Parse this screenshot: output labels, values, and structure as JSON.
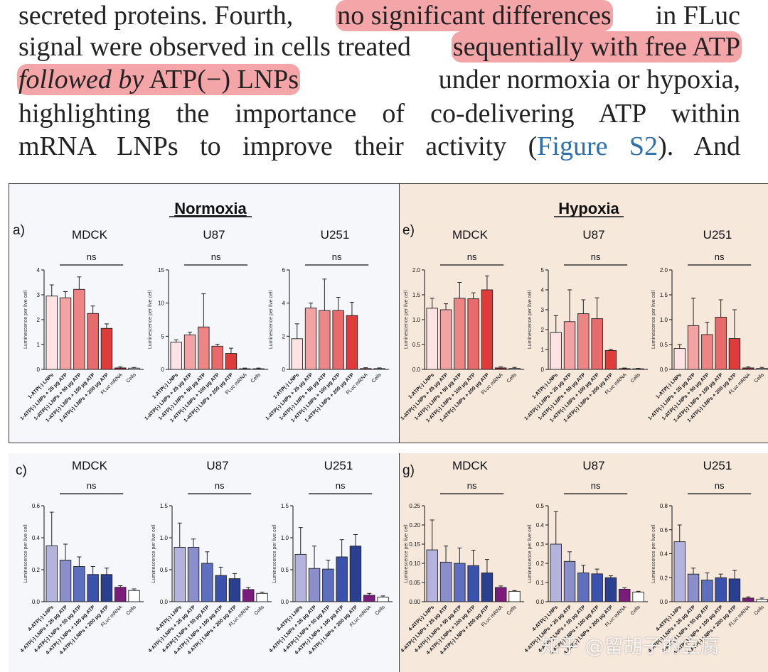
{
  "text": {
    "line1": {
      "a": "secreted proteins. Fourth,",
      "hl": "no significant differences",
      "b": "in FLuc"
    },
    "line2": {
      "a": "signal were observed in cells treated",
      "hl": "sequentially with free ATP"
    },
    "line3": {
      "hl_italic": "followed by",
      "hl": "ATP(−) LNPs",
      "b": "under normoxia or hypoxia,"
    },
    "line4": "highlighting the importance of co-delivering ATP within",
    "line5": {
      "a": "mRNA LNPs to improve their activity (",
      "link": "Figure S2",
      "b": "). And"
    }
  },
  "figure": {
    "normoxia_title": "Normoxia",
    "hypoxia_title": "Hypoxia",
    "colors": {
      "normoxia_bg": "#f5f7fa",
      "hypoxia_bg": "#f7e8dc",
      "reds": [
        "#fde3e3",
        "#f3a3a3",
        "#ee8585",
        "#e86a6a",
        "#df3b3b",
        "#c42828"
      ],
      "blues": [
        "#b3b3dd",
        "#8a8fcb",
        "#5d6fbf",
        "#3a52ad",
        "#2a3f8f",
        "#1e2e6e"
      ],
      "mrna_red": "#8e1f25",
      "mrna_blue": "#7b1c7c",
      "white": "#ffffff"
    },
    "watermark": "知乎 @留胡子的豆腐"
  },
  "chart_data": [
    {
      "panel": "a",
      "cell": "MDCK",
      "condition": "Normoxia",
      "type": "bar",
      "ylabel": "Luminescence per live cell",
      "ylim": [
        0,
        4
      ],
      "yticks": [
        0,
        1,
        2,
        3,
        4
      ],
      "sig": "ns",
      "categories": [
        "1-ATP(-) LNPs",
        "1-ATP(-) LNPs + 25 μg ATP",
        "1-ATP(-) LNPs + 50 μg ATP",
        "1-ATP(-) LNPs + 100 μg ATP",
        "1-ATP(-) LNPs + 200 μg ATP",
        "FLuc mRNA",
        "Cells"
      ],
      "values": [
        2.95,
        2.88,
        3.22,
        2.25,
        1.65,
        0.06,
        0.05
      ],
      "errors": [
        0.45,
        0.25,
        0.5,
        0.3,
        0.18,
        0.04,
        0.03
      ]
    },
    {
      "panel": "",
      "cell": "U87",
      "condition": "Normoxia",
      "type": "bar",
      "ylabel": "Luminescence per live cell",
      "ylim": [
        0,
        15
      ],
      "yticks": [
        0,
        5,
        10,
        15
      ],
      "sig": "ns",
      "categories": [
        "1-ATP(-) LNPs",
        "1-ATP(-) LNPs + 25 μg ATP",
        "1-ATP(-) LNPs + 50 μg ATP",
        "1-ATP(-) LNPs + 100 μg ATP",
        "1-ATP(-) LNPs + 200 μg ATP",
        "FLuc mRNA",
        "Cells"
      ],
      "values": [
        4.1,
        5.2,
        6.4,
        3.5,
        2.4,
        0.1,
        0.1
      ],
      "errors": [
        0.35,
        0.4,
        5.0,
        0.3,
        0.8,
        0.1,
        0.1
      ]
    },
    {
      "panel": "",
      "cell": "U251",
      "condition": "Normoxia",
      "type": "bar",
      "ylabel": "Luminescence per live cell",
      "ylim": [
        0,
        6
      ],
      "yticks": [
        0,
        2,
        4,
        6
      ],
      "sig": "ns",
      "categories": [
        "1-ATP(-) LNPs",
        "1-ATP(-) LNPs + 25 μg ATP",
        "1-ATP(-) LNPs + 50 μg ATP",
        "1-ATP(-) LNPs + 100 μg ATP",
        "1-ATP(-) LNPs + 200 μg ATP",
        "FLuc mRNA",
        "Cells"
      ],
      "values": [
        1.85,
        3.7,
        3.55,
        3.55,
        3.25,
        0.05,
        0.05
      ],
      "errors": [
        0.9,
        0.3,
        1.9,
        0.8,
        0.8,
        0.05,
        0.04
      ]
    },
    {
      "panel": "e",
      "cell": "MDCK",
      "condition": "Hypoxia",
      "type": "bar",
      "ylabel": "Luminescence per live cell",
      "ylim": [
        0,
        2.0
      ],
      "yticks": [
        "0.0",
        "0.5",
        "1.0",
        "1.5",
        "2.0"
      ],
      "sig": "ns",
      "categories": [
        "1-ATP(-) LNPs",
        "1-ATP(-) LNPs + 25 μg ATP",
        "1-ATP(-) LNPs + 50 μg ATP",
        "1-ATP(-) LNPs + 100 μg ATP",
        "1-ATP(-) LNPs + 200 μg ATP",
        "FLuc mRNA",
        "Cells"
      ],
      "values": [
        1.23,
        1.2,
        1.43,
        1.42,
        1.6,
        0.03,
        0.02
      ],
      "errors": [
        0.2,
        0.12,
        0.32,
        0.12,
        0.28,
        0.02,
        0.02
      ]
    },
    {
      "panel": "",
      "cell": "U87",
      "condition": "Hypoxia",
      "type": "bar",
      "ylabel": "Luminescence per live cell",
      "ylim": [
        0,
        5
      ],
      "yticks": [
        0,
        1,
        2,
        3,
        4,
        5
      ],
      "sig": "ns",
      "categories": [
        "1-ATP(-) LNPs",
        "1-ATP(-) LNPs + 25 μg ATP",
        "1-ATP(-) LNPs + 50 μg ATP",
        "1-ATP(-) LNPs + 100 μg ATP",
        "1-ATP(-) LNPs + 200 μg ATP",
        "FLuc mRNA",
        "Cells"
      ],
      "values": [
        1.85,
        2.4,
        2.8,
        2.55,
        0.95,
        0.04,
        0.03
      ],
      "errors": [
        0.85,
        1.6,
        0.7,
        1.05,
        0.05,
        0.03,
        0.02
      ]
    },
    {
      "panel": "",
      "cell": "U251",
      "condition": "Hypoxia",
      "type": "bar",
      "ylabel": "Luminescence per live cell",
      "ylim": [
        0,
        2.0
      ],
      "yticks": [
        "0.0",
        "0.5",
        "1.0",
        "1.5",
        "2.0"
      ],
      "sig": "ns",
      "categories": [
        "1-ATP(-) LNPs",
        "1-ATP(-) LNPs + 25 μg ATP",
        "1-ATP(-) LNPs + 50 μg ATP",
        "1-ATP(-) LNPs + 100 μg ATP",
        "1-ATP(-) LNPs + 200 μg ATP",
        "FLuc mRNA",
        "Cells"
      ],
      "values": [
        0.42,
        0.88,
        0.7,
        1.05,
        0.62,
        0.03,
        0.02
      ],
      "errors": [
        0.08,
        0.55,
        0.25,
        0.35,
        0.58,
        0.02,
        0.02
      ]
    },
    {
      "panel": "c",
      "cell": "MDCK",
      "condition": "Normoxia",
      "type": "bar",
      "ylabel": "Luminescence per live cell",
      "ylim": [
        0,
        0.6
      ],
      "yticks": [
        "0.0",
        "0.2",
        "0.4",
        "0.6"
      ],
      "sig": "ns",
      "categories": [
        "4-ATP(-) LNPs",
        "4-ATP(-) LNPs + 25 μg ATP",
        "4-ATP(-) LNPs + 50 μg ATP",
        "4-ATP(-) LNPs + 100 μg ATP",
        "4-ATP(-) LNPs + 200 μg ATP",
        "FLuc mRNA",
        "Cells"
      ],
      "values": [
        0.35,
        0.26,
        0.22,
        0.17,
        0.17,
        0.09,
        0.07
      ],
      "errors": [
        0.21,
        0.1,
        0.06,
        0.05,
        0.04,
        0.01,
        0.01
      ]
    },
    {
      "panel": "",
      "cell": "U87",
      "condition": "Normoxia",
      "type": "bar",
      "ylabel": "Luminescence per live cell",
      "ylim": [
        0,
        1.5
      ],
      "yticks": [
        "0.0",
        "0.5",
        "1.0",
        "1.5"
      ],
      "sig": "ns",
      "categories": [
        "4-ATP(-) LNPs",
        "4-ATP(-) LNPs + 25 μg ATP",
        "4-ATP(-) LNPs + 50 μg ATP",
        "4-ATP(-) LNPs + 100 μg ATP",
        "4-ATP(-) LNPs + 200 μg ATP",
        "FLuc mRNA",
        "Cells"
      ],
      "values": [
        0.85,
        0.85,
        0.6,
        0.41,
        0.36,
        0.19,
        0.13
      ],
      "errors": [
        0.38,
        0.13,
        0.18,
        0.13,
        0.08,
        0.03,
        0.02
      ]
    },
    {
      "panel": "",
      "cell": "U251",
      "condition": "Normoxia",
      "type": "bar",
      "ylabel": "Luminescence per live cell",
      "ylim": [
        0,
        1.5
      ],
      "yticks": [
        "0.0",
        "0.5",
        "1.0",
        "1.5"
      ],
      "sig": "ns",
      "categories": [
        "4-ATP(-) LNPs",
        "4-ATP(-) LNPs + 25 μg ATP",
        "4-ATP(-) LNPs + 50 μg ATP",
        "4-ATP(-) LNPs + 100 μg ATP",
        "4-ATP(-) LNPs + 200 μg ATP",
        "FLuc mRNA",
        "Cells"
      ],
      "values": [
        0.74,
        0.52,
        0.51,
        0.7,
        0.87,
        0.1,
        0.07
      ],
      "errors": [
        0.42,
        0.35,
        0.14,
        0.27,
        0.18,
        0.03,
        0.02
      ]
    },
    {
      "panel": "g",
      "cell": "MDCK",
      "condition": "Hypoxia",
      "type": "bar",
      "ylabel": "Luminescence per live cell",
      "ylim": [
        0,
        0.25
      ],
      "yticks": [
        "0.00",
        "0.05",
        "0.10",
        "0.15",
        "0.20",
        "0.25"
      ],
      "sig": "ns",
      "categories": [
        "4-ATP(-) LNPs",
        "4-ATP(-) LNPs + 25 μg ATP",
        "4-ATP(-) LNPs + 50 μg ATP",
        "4-ATP(-) LNPs + 100 μg ATP",
        "4-ATP(-) LNPs + 200 μg ATP",
        "FLuc mRNA",
        "Cells"
      ],
      "values": [
        0.135,
        0.103,
        0.1,
        0.094,
        0.075,
        0.037,
        0.027
      ],
      "errors": [
        0.078,
        0.042,
        0.04,
        0.04,
        0.035,
        0.004,
        0.002
      ]
    },
    {
      "panel": "",
      "cell": "U87",
      "condition": "Hypoxia",
      "type": "bar",
      "ylabel": "Luminescence per live cell",
      "ylim": [
        0,
        0.5
      ],
      "yticks": [
        "0.0",
        "0.1",
        "0.2",
        "0.3",
        "0.4",
        "0.5"
      ],
      "sig": "ns",
      "categories": [
        "4-ATP(-) LNPs",
        "4-ATP(-) LNPs + 25 μg ATP",
        "4-ATP(-) LNPs + 50 μg ATP",
        "4-ATP(-) LNPs + 100 μg ATP",
        "4-ATP(-) LNPs + 200 μg ATP",
        "FLuc mRNA",
        "Cells"
      ],
      "values": [
        0.3,
        0.21,
        0.15,
        0.145,
        0.125,
        0.065,
        0.05
      ],
      "errors": [
        0.17,
        0.05,
        0.04,
        0.025,
        0.01,
        0.007,
        0.004
      ]
    },
    {
      "panel": "",
      "cell": "U251",
      "condition": "Hypoxia",
      "type": "bar",
      "ylabel": "Luminescence per live cell",
      "ylim": [
        0,
        0.8
      ],
      "yticks": [
        "0.0",
        "0.2",
        "0.4",
        "0.6",
        "0.8"
      ],
      "sig": "ns",
      "categories": [
        "4-ATP(-) LNPs",
        "4-ATP(-) LNPs + 25 μg ATP",
        "4-ATP(-) LNPs + 50 μg ATP",
        "4-ATP(-) LNPs + 100 μg ATP",
        "4-ATP(-) LNPs + 200 μg ATP",
        "FLuc mRNA",
        "Cells"
      ],
      "values": [
        0.5,
        0.23,
        0.18,
        0.2,
        0.19,
        0.03,
        0.02
      ],
      "errors": [
        0.14,
        0.05,
        0.06,
        0.03,
        0.07,
        0.01,
        0.01
      ]
    }
  ]
}
